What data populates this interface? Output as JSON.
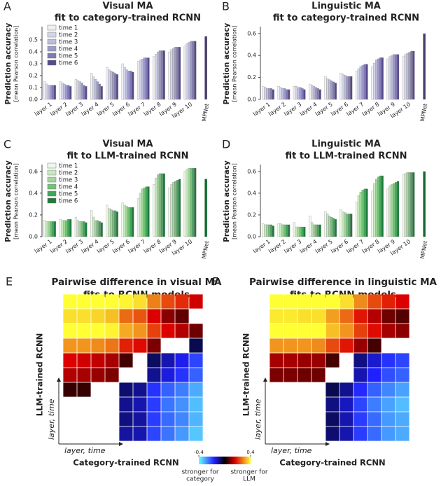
{
  "chart_data": [
    {
      "type": "bar",
      "panel": "A",
      "title": [
        "Visual MA",
        "fit to category-trained RCNN"
      ],
      "ylabel": "Prediction accuracy",
      "ylabel_sub": "[mean Pearson correlation]",
      "categories": [
        "layer 1",
        "layer 2",
        "layer 3",
        "layer 4",
        "layer 5",
        "layer 6",
        "layer 7",
        "layer 8",
        "layer 9",
        "layer 10",
        "MPNet"
      ],
      "series": [
        {
          "name": "time 1",
          "color": "#efeff6",
          "values": [
            0.15,
            0.15,
            0.17,
            0.22,
            0.27,
            0.3,
            0.32,
            0.36,
            0.4,
            0.45,
            null
          ]
        },
        {
          "name": "time 2",
          "color": "#d6d5e8",
          "values": [
            0.13,
            0.14,
            0.16,
            0.19,
            0.25,
            0.27,
            0.33,
            0.38,
            0.42,
            0.47,
            null
          ]
        },
        {
          "name": "time 3",
          "color": "#bcbcdb",
          "values": [
            0.12,
            0.13,
            0.15,
            0.17,
            0.24,
            0.25,
            0.34,
            0.4,
            0.43,
            0.48,
            null
          ]
        },
        {
          "name": "time 4",
          "color": "#9e9ac8",
          "values": [
            0.12,
            0.12,
            0.14,
            0.15,
            0.23,
            0.24,
            0.35,
            0.41,
            0.44,
            0.49,
            null
          ]
        },
        {
          "name": "time 5",
          "color": "#7f7bb5",
          "values": [
            0.12,
            0.12,
            0.12,
            0.13,
            0.22,
            0.24,
            0.35,
            0.41,
            0.44,
            0.49,
            null
          ]
        },
        {
          "name": "time 6",
          "color": "#584b8a",
          "values": [
            0.12,
            0.11,
            0.11,
            0.11,
            0.21,
            0.23,
            0.35,
            0.41,
            0.44,
            0.49,
            null
          ]
        }
      ],
      "mpnet_value": 0.53,
      "mpnet_color": "#4b3d6c",
      "ylim": [
        0,
        0.6
      ],
      "yticks": [
        {
          "value": 0,
          "label": "0.0"
        },
        0.1,
        0.2,
        0.3,
        0.4,
        0.5
      ],
      "legend": "upper left"
    },
    {
      "type": "bar",
      "panel": "B",
      "title": [
        "Linguistic MA",
        "fit to category-trained RCNN"
      ],
      "ylabel": "Prediction accuracy",
      "ylabel_sub": "[mean Pearson correlation]",
      "categories": [
        "layer 1",
        "layer 2",
        "layer 3",
        "layer 4",
        "layer 5",
        "layer 6",
        "layer 7",
        "layer 8",
        "layer 9",
        "layer 10",
        "MPNet"
      ],
      "series": [
        {
          "name": "time 1",
          "color": "#efeff6",
          "values": [
            0.12,
            0.12,
            0.12,
            0.14,
            0.21,
            0.24,
            0.26,
            0.3,
            0.37,
            0.39,
            null
          ]
        },
        {
          "name": "time 2",
          "color": "#d6d5e8",
          "values": [
            0.11,
            0.11,
            0.12,
            0.13,
            0.19,
            0.23,
            0.28,
            0.33,
            0.39,
            0.41,
            null
          ]
        },
        {
          "name": "time 3",
          "color": "#bcbcdb",
          "values": [
            0.1,
            0.1,
            0.11,
            0.12,
            0.18,
            0.22,
            0.3,
            0.36,
            0.4,
            0.42,
            null
          ]
        },
        {
          "name": "time 4",
          "color": "#9e9ac8",
          "values": [
            0.1,
            0.1,
            0.11,
            0.11,
            0.17,
            0.21,
            0.31,
            0.37,
            0.41,
            0.43,
            null
          ]
        },
        {
          "name": "time 5",
          "color": "#7f7bb5",
          "values": [
            0.1,
            0.09,
            0.1,
            0.1,
            0.16,
            0.21,
            0.32,
            0.38,
            0.41,
            0.44,
            null
          ]
        },
        {
          "name": "time 6",
          "color": "#584b8a",
          "values": [
            0.09,
            0.09,
            0.09,
            0.09,
            0.15,
            0.21,
            0.32,
            0.38,
            0.41,
            0.44,
            null
          ]
        }
      ],
      "mpnet_value": 0.6,
      "mpnet_color": "#4b3d6c",
      "ylim": [
        0,
        0.65
      ],
      "yticks": [
        {
          "value": 0,
          "label": "0.0"
        },
        0.2,
        0.4,
        0.6
      ]
    },
    {
      "type": "bar",
      "panel": "C",
      "title": [
        "Visual MA",
        "fit to LLM-trained RCNN"
      ],
      "ylabel": "Prediction accuracy",
      "ylabel_sub": "[mean Pearson correlation]",
      "categories": [
        "layer 1",
        "layer 2",
        "layer 3",
        "layer 4",
        "layer 5",
        "layer 6",
        "layer 7",
        "layer 8",
        "layer 9",
        "layer 10",
        "MPNet"
      ],
      "series": [
        {
          "name": "time 1",
          "color": "#eef8ea",
          "values": [
            0.15,
            0.16,
            0.18,
            0.24,
            0.29,
            0.31,
            0.35,
            0.48,
            0.45,
            0.6,
            null
          ]
        },
        {
          "name": "time 2",
          "color": "#c8e8c0",
          "values": [
            0.14,
            0.15,
            0.15,
            0.18,
            0.26,
            0.29,
            0.4,
            0.54,
            0.48,
            0.62,
            null
          ]
        },
        {
          "name": "time 3",
          "color": "#a2d79b",
          "values": [
            0.14,
            0.15,
            0.14,
            0.15,
            0.25,
            0.28,
            0.44,
            0.57,
            0.5,
            0.63,
            null
          ]
        },
        {
          "name": "time 4",
          "color": "#74c176",
          "values": [
            0.14,
            0.15,
            0.14,
            0.15,
            0.24,
            0.27,
            0.45,
            0.58,
            0.51,
            0.63,
            null
          ]
        },
        {
          "name": "time 5",
          "color": "#42a45c",
          "values": [
            0.14,
            0.16,
            0.14,
            0.14,
            0.24,
            0.27,
            0.46,
            0.58,
            0.52,
            0.63,
            null
          ]
        },
        {
          "name": "time 6",
          "color": "#207a3c",
          "values": [
            0.14,
            0.16,
            0.13,
            0.13,
            0.23,
            0.27,
            0.46,
            0.58,
            0.53,
            0.63,
            null
          ]
        }
      ],
      "mpnet_value": 0.53,
      "mpnet_color": "#106b30",
      "ylim": [
        0,
        0.65
      ],
      "yticks": [
        {
          "value": 0,
          "label": "0.0"
        },
        0.2,
        0.4,
        0.6
      ],
      "legend": "upper left"
    },
    {
      "type": "bar",
      "panel": "D",
      "title": [
        "Linguistic MA",
        "fit to LLM-trained RCNN"
      ],
      "ylabel": "Prediction accuracy",
      "ylabel_sub": "[mean Pearson correlation]",
      "categories": [
        "layer 1",
        "layer 2",
        "layer 3",
        "layer 4",
        "layer 5",
        "layer 6",
        "layer 7",
        "layer 8",
        "layer 9",
        "layer 10",
        "MPNet"
      ],
      "series": [
        {
          "name": "time 1",
          "color": "#eef8ea",
          "values": [
            0.12,
            0.12,
            0.13,
            0.19,
            0.23,
            0.25,
            0.32,
            0.42,
            0.44,
            0.57,
            null
          ]
        },
        {
          "name": "time 2",
          "color": "#c8e8c0",
          "values": [
            0.11,
            0.12,
            0.09,
            0.13,
            0.21,
            0.23,
            0.38,
            0.49,
            0.47,
            0.58,
            null
          ]
        },
        {
          "name": "time 3",
          "color": "#a2d79b",
          "values": [
            0.11,
            0.11,
            0.09,
            0.11,
            0.19,
            0.22,
            0.41,
            0.53,
            0.48,
            0.59,
            null
          ]
        },
        {
          "name": "time 4",
          "color": "#74c176",
          "values": [
            0.11,
            0.11,
            0.09,
            0.11,
            0.18,
            0.21,
            0.43,
            0.55,
            0.49,
            0.59,
            null
          ]
        },
        {
          "name": "time 5",
          "color": "#42a45c",
          "values": [
            0.11,
            0.11,
            0.09,
            0.11,
            0.17,
            0.21,
            0.44,
            0.56,
            0.5,
            0.59,
            null
          ]
        },
        {
          "name": "time 6",
          "color": "#207a3c",
          "values": [
            0.1,
            0.11,
            0.09,
            0.11,
            0.16,
            0.21,
            0.44,
            0.56,
            0.51,
            0.59,
            null
          ]
        }
      ],
      "mpnet_value": 0.6,
      "mpnet_color": "#106b30",
      "ylim": [
        0,
        0.65
      ],
      "yticks": [
        {
          "value": 0,
          "label": "0.0"
        },
        0.2,
        0.4,
        0.6
      ]
    },
    {
      "type": "heatmap",
      "panel": "E",
      "title": [
        "Pairwise difference in visual MA",
        "fits to RCNN models"
      ],
      "xlabel": "Category-trained RCNN",
      "ylabel": "LLM-trained RCNN",
      "x_arrow_label": "layer, time",
      "y_arrow_label": "layer, time",
      "matrix": [
        [
          null,
          null,
          null,
          null,
          -0.1,
          -0.11,
          -0.2,
          -0.25,
          -0.29,
          -0.34
        ],
        [
          null,
          null,
          null,
          null,
          -0.08,
          -0.1,
          -0.19,
          -0.24,
          -0.27,
          -0.32
        ],
        [
          null,
          null,
          null,
          null,
          -0.09,
          -0.11,
          -0.19,
          -0.25,
          -0.28,
          -0.33
        ],
        [
          0.04,
          0.04,
          null,
          null,
          -0.07,
          -0.09,
          -0.18,
          -0.23,
          -0.26,
          -0.31
        ],
        [
          0.13,
          0.12,
          0.11,
          0.09,
          null,
          null,
          -0.09,
          -0.14,
          -0.18,
          -0.23
        ],
        [
          0.16,
          0.15,
          0.14,
          0.12,
          0.05,
          null,
          -0.06,
          -0.11,
          -0.15,
          -0.2
        ],
        [
          0.3,
          0.3,
          0.29,
          0.27,
          0.19,
          0.17,
          0.09,
          null,
          null,
          -0.05
        ],
        [
          0.43,
          0.43,
          0.41,
          0.39,
          0.32,
          0.3,
          0.22,
          0.16,
          0.13,
          0.08
        ],
        [
          0.37,
          0.37,
          0.36,
          0.34,
          0.26,
          0.24,
          0.16,
          0.1,
          0.07,
          null
        ],
        [
          0.5,
          0.5,
          0.48,
          0.46,
          0.39,
          0.37,
          0.28,
          0.23,
          0.2,
          0.15
        ]
      ]
    },
    {
      "type": "heatmap",
      "panel": "F",
      "title": [
        "Pairwise difference in linguistic MA",
        "fits to RCNN models"
      ],
      "xlabel": "Category-trained RCNN",
      "ylabel": "LLM-trained RCNN",
      "x_arrow_label": "layer, time",
      "y_arrow_label": "layer, time",
      "matrix": [
        [
          null,
          null,
          null,
          null,
          -0.07,
          -0.11,
          -0.19,
          -0.24,
          -0.29,
          -0.31
        ],
        [
          null,
          null,
          null,
          null,
          -0.06,
          -0.11,
          -0.19,
          -0.24,
          -0.29,
          -0.31
        ],
        [
          null,
          null,
          null,
          null,
          -0.08,
          -0.12,
          -0.2,
          -0.26,
          -0.3,
          -0.33
        ],
        [
          null,
          null,
          null,
          null,
          -0.05,
          -0.09,
          -0.17,
          -0.23,
          -0.27,
          -0.3
        ],
        [
          0.09,
          0.09,
          0.08,
          0.08,
          null,
          null,
          -0.11,
          -0.16,
          -0.21,
          -0.23
        ],
        [
          0.12,
          0.12,
          0.11,
          0.11,
          0.05,
          null,
          -0.08,
          -0.13,
          -0.18,
          -0.2
        ],
        [
          0.3,
          0.3,
          0.3,
          0.29,
          0.23,
          0.18,
          0.11,
          0.05,
          null,
          null
        ],
        [
          0.42,
          0.42,
          0.41,
          0.4,
          0.34,
          0.3,
          0.22,
          0.17,
          0.12,
          0.1
        ],
        [
          0.38,
          0.38,
          0.37,
          0.37,
          0.31,
          0.26,
          0.18,
          0.13,
          0.08,
          0.06
        ],
        [
          0.48,
          0.48,
          0.48,
          0.47,
          0.41,
          0.37,
          0.29,
          0.23,
          0.19,
          0.16
        ]
      ]
    }
  ],
  "colorbar": {
    "clim": [
      -0.4,
      0.4
    ],
    "cticks": [
      -0.4,
      0.4
    ],
    "low_label": [
      "stronger for",
      "category"
    ],
    "high_label": [
      "stronger for",
      "LLM"
    ]
  }
}
